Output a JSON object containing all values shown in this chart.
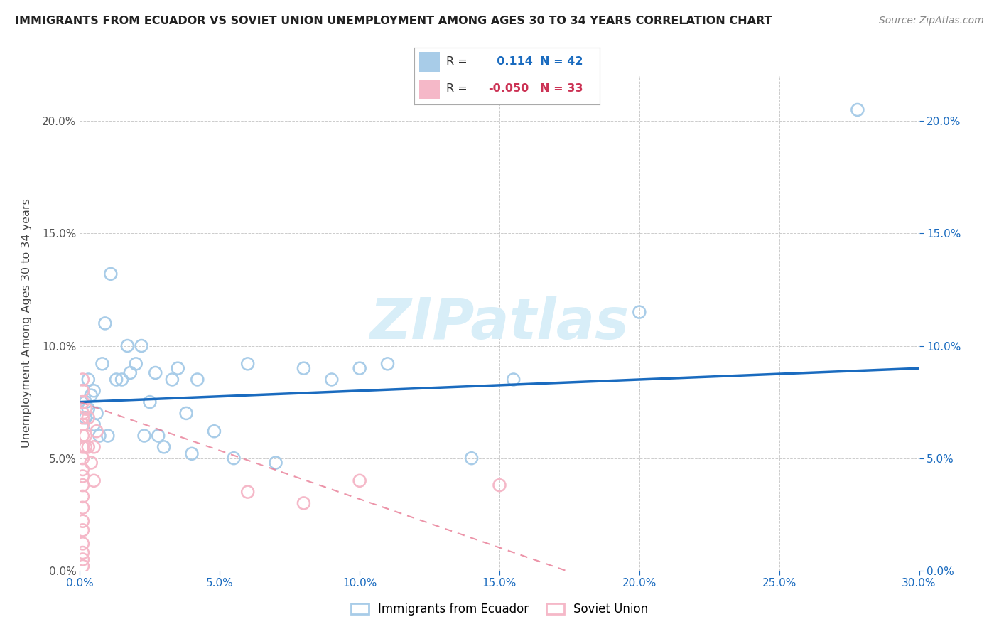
{
  "title": "IMMIGRANTS FROM ECUADOR VS SOVIET UNION UNEMPLOYMENT AMONG AGES 30 TO 34 YEARS CORRELATION CHART",
  "source": "Source: ZipAtlas.com",
  "ylabel": "Unemployment Among Ages 30 to 34 years",
  "xlim": [
    0,
    0.3
  ],
  "ylim": [
    0,
    0.22
  ],
  "xticks": [
    0.0,
    0.05,
    0.1,
    0.15,
    0.2,
    0.25,
    0.3
  ],
  "yticks": [
    0.0,
    0.05,
    0.1,
    0.15,
    0.2
  ],
  "ecuador_x": [
    0.001,
    0.002,
    0.002,
    0.003,
    0.003,
    0.004,
    0.005,
    0.005,
    0.006,
    0.007,
    0.008,
    0.009,
    0.01,
    0.011,
    0.013,
    0.015,
    0.017,
    0.018,
    0.02,
    0.022,
    0.023,
    0.025,
    0.027,
    0.028,
    0.03,
    0.033,
    0.035,
    0.038,
    0.04,
    0.042,
    0.048,
    0.055,
    0.06,
    0.07,
    0.08,
    0.09,
    0.1,
    0.11,
    0.14,
    0.155,
    0.2,
    0.278
  ],
  "ecuador_y": [
    0.08,
    0.075,
    0.068,
    0.072,
    0.085,
    0.078,
    0.065,
    0.08,
    0.07,
    0.06,
    0.092,
    0.11,
    0.06,
    0.132,
    0.085,
    0.085,
    0.1,
    0.088,
    0.092,
    0.1,
    0.06,
    0.075,
    0.088,
    0.06,
    0.055,
    0.085,
    0.09,
    0.07,
    0.052,
    0.085,
    0.062,
    0.05,
    0.092,
    0.048,
    0.09,
    0.085,
    0.09,
    0.092,
    0.05,
    0.085,
    0.115,
    0.205
  ],
  "soviet_x": [
    0.001,
    0.001,
    0.001,
    0.001,
    0.001,
    0.001,
    0.001,
    0.001,
    0.001,
    0.001,
    0.001,
    0.001,
    0.001,
    0.001,
    0.001,
    0.001,
    0.001,
    0.001,
    0.001,
    0.001,
    0.002,
    0.002,
    0.002,
    0.003,
    0.003,
    0.004,
    0.005,
    0.005,
    0.006,
    0.06,
    0.08,
    0.1,
    0.15
  ],
  "soviet_y": [
    0.075,
    0.068,
    0.06,
    0.055,
    0.05,
    0.045,
    0.042,
    0.038,
    0.033,
    0.028,
    0.022,
    0.018,
    0.012,
    0.008,
    0.005,
    0.002,
    0.07,
    0.065,
    0.08,
    0.085,
    0.072,
    0.06,
    0.055,
    0.068,
    0.055,
    0.048,
    0.055,
    0.04,
    0.062,
    0.035,
    0.03,
    0.04,
    0.038
  ],
  "ecuador_R": 0.114,
  "ecuador_N": 42,
  "soviet_R": -0.05,
  "soviet_N": 33,
  "ecuador_color": "#a8cce8",
  "soviet_color": "#f5b8c8",
  "ecuador_line_color": "#1a6bbf",
  "soviet_line_color": "#e87a94",
  "watermark": "ZIPatlas",
  "watermark_color": "#d8eef8",
  "grid_color": "#cccccc",
  "legend_border_color": "#aaaaaa"
}
